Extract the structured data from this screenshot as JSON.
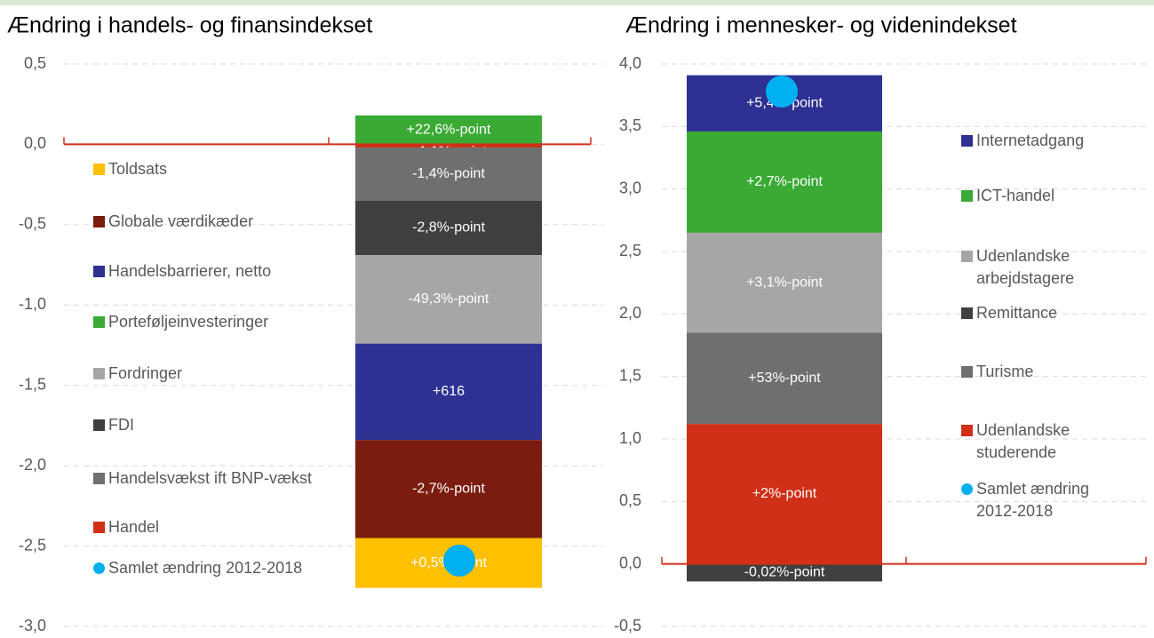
{
  "chart_data": [
    {
      "type": "bar",
      "stacked": true,
      "title": "Ændring i handels- og finansindekset",
      "ylim": [
        -3.0,
        0.5
      ],
      "yticks": [
        {
          "value": 0.5,
          "label": "0,5"
        },
        {
          "value": 0.0,
          "label": "0,0"
        },
        {
          "value": -0.5,
          "label": "-0,5"
        },
        {
          "value": -1.0,
          "label": "-1,0"
        },
        {
          "value": -1.5,
          "label": "-1,5"
        },
        {
          "value": -2.0,
          "label": "-2,0"
        },
        {
          "value": -2.5,
          "label": "-2,5"
        },
        {
          "value": -3.0,
          "label": "-3,0"
        }
      ],
      "grid": true,
      "series": [
        {
          "name": "Toldsats",
          "color": "#ffc000",
          "values": [
            -0.31
          ],
          "value_labels": [
            "+0,5%-point"
          ]
        },
        {
          "name": "Globale værdikæder",
          "color": "#7b1c10",
          "values": [
            -0.61
          ],
          "value_labels": [
            "-2,7%-point"
          ]
        },
        {
          "name": "Handelsbarrierer, netto",
          "color": "#2e3192",
          "values": [
            -0.6
          ],
          "value_labels": [
            "+616"
          ]
        },
        {
          "name": "Porteføljeinvesteringer",
          "color": "#3aaa35",
          "values": [
            0.18
          ],
          "value_labels": [
            "+22,6%-point"
          ]
        },
        {
          "name": "Fordringer",
          "color": "#a6a6a6",
          "values": [
            -0.55
          ],
          "value_labels": [
            "-49,3%-point"
          ]
        },
        {
          "name": "FDI",
          "color": "#404040",
          "values": [
            -0.34
          ],
          "value_labels": [
            "-2,8%-point"
          ]
        },
        {
          "name": "Handelsvækst ift BNP-vækst",
          "color": "#6f6f6f",
          "values": [
            -0.33
          ],
          "value_labels": [
            "-1,4%-point"
          ]
        },
        {
          "name": "Handel",
          "color": "#d03018",
          "values": [
            -0.02
          ],
          "value_labels": [
            "+1,1%-point"
          ]
        },
        {
          "name": "Samlet ændring 2012-2018",
          "type": "scatter",
          "color": "#00b0f0",
          "values": [
            -2.59
          ]
        }
      ]
    },
    {
      "type": "bar",
      "stacked": true,
      "title": "Ændring i mennesker- og videnindekset",
      "ylim": [
        -0.5,
        4.0
      ],
      "yticks": [
        {
          "value": 4.0,
          "label": "4,0"
        },
        {
          "value": 3.5,
          "label": "3,5"
        },
        {
          "value": 3.0,
          "label": "3,0"
        },
        {
          "value": 2.5,
          "label": "2,5"
        },
        {
          "value": 2.0,
          "label": "2,0"
        },
        {
          "value": 1.5,
          "label": "1,5"
        },
        {
          "value": 1.0,
          "label": "1,0"
        },
        {
          "value": 0.5,
          "label": "0,5"
        },
        {
          "value": 0.0,
          "label": "0,0"
        },
        {
          "value": -0.5,
          "label": "-0,5"
        }
      ],
      "grid": true,
      "series": [
        {
          "name": "Internetadgang",
          "color": "#2e3192",
          "values": [
            0.45
          ],
          "value_labels": [
            "+5,4%-point"
          ]
        },
        {
          "name": "ICT-handel",
          "color": "#3aaa35",
          "values": [
            0.81
          ],
          "value_labels": [
            "+2,7%-point"
          ]
        },
        {
          "name": "Udenlandske arbejdstagere",
          "color": "#a6a6a6",
          "values": [
            0.8
          ],
          "value_labels": [
            "+3,1%-point"
          ]
        },
        {
          "name": "Remittance",
          "color": "#404040",
          "values": [
            -0.14
          ],
          "value_labels": [
            "-0,02%-point"
          ]
        },
        {
          "name": "Turisme",
          "color": "#6f6f6f",
          "values": [
            0.73
          ],
          "value_labels": [
            "+53%-point"
          ]
        },
        {
          "name": "Udenlandske studerende",
          "color": "#d03018",
          "values": [
            1.12
          ],
          "value_labels": [
            "+2%-point"
          ]
        },
        {
          "name": "Samlet ændring 2012-2018",
          "type": "scatter",
          "color": "#00b0f0",
          "values": [
            3.78
          ]
        }
      ]
    }
  ]
}
